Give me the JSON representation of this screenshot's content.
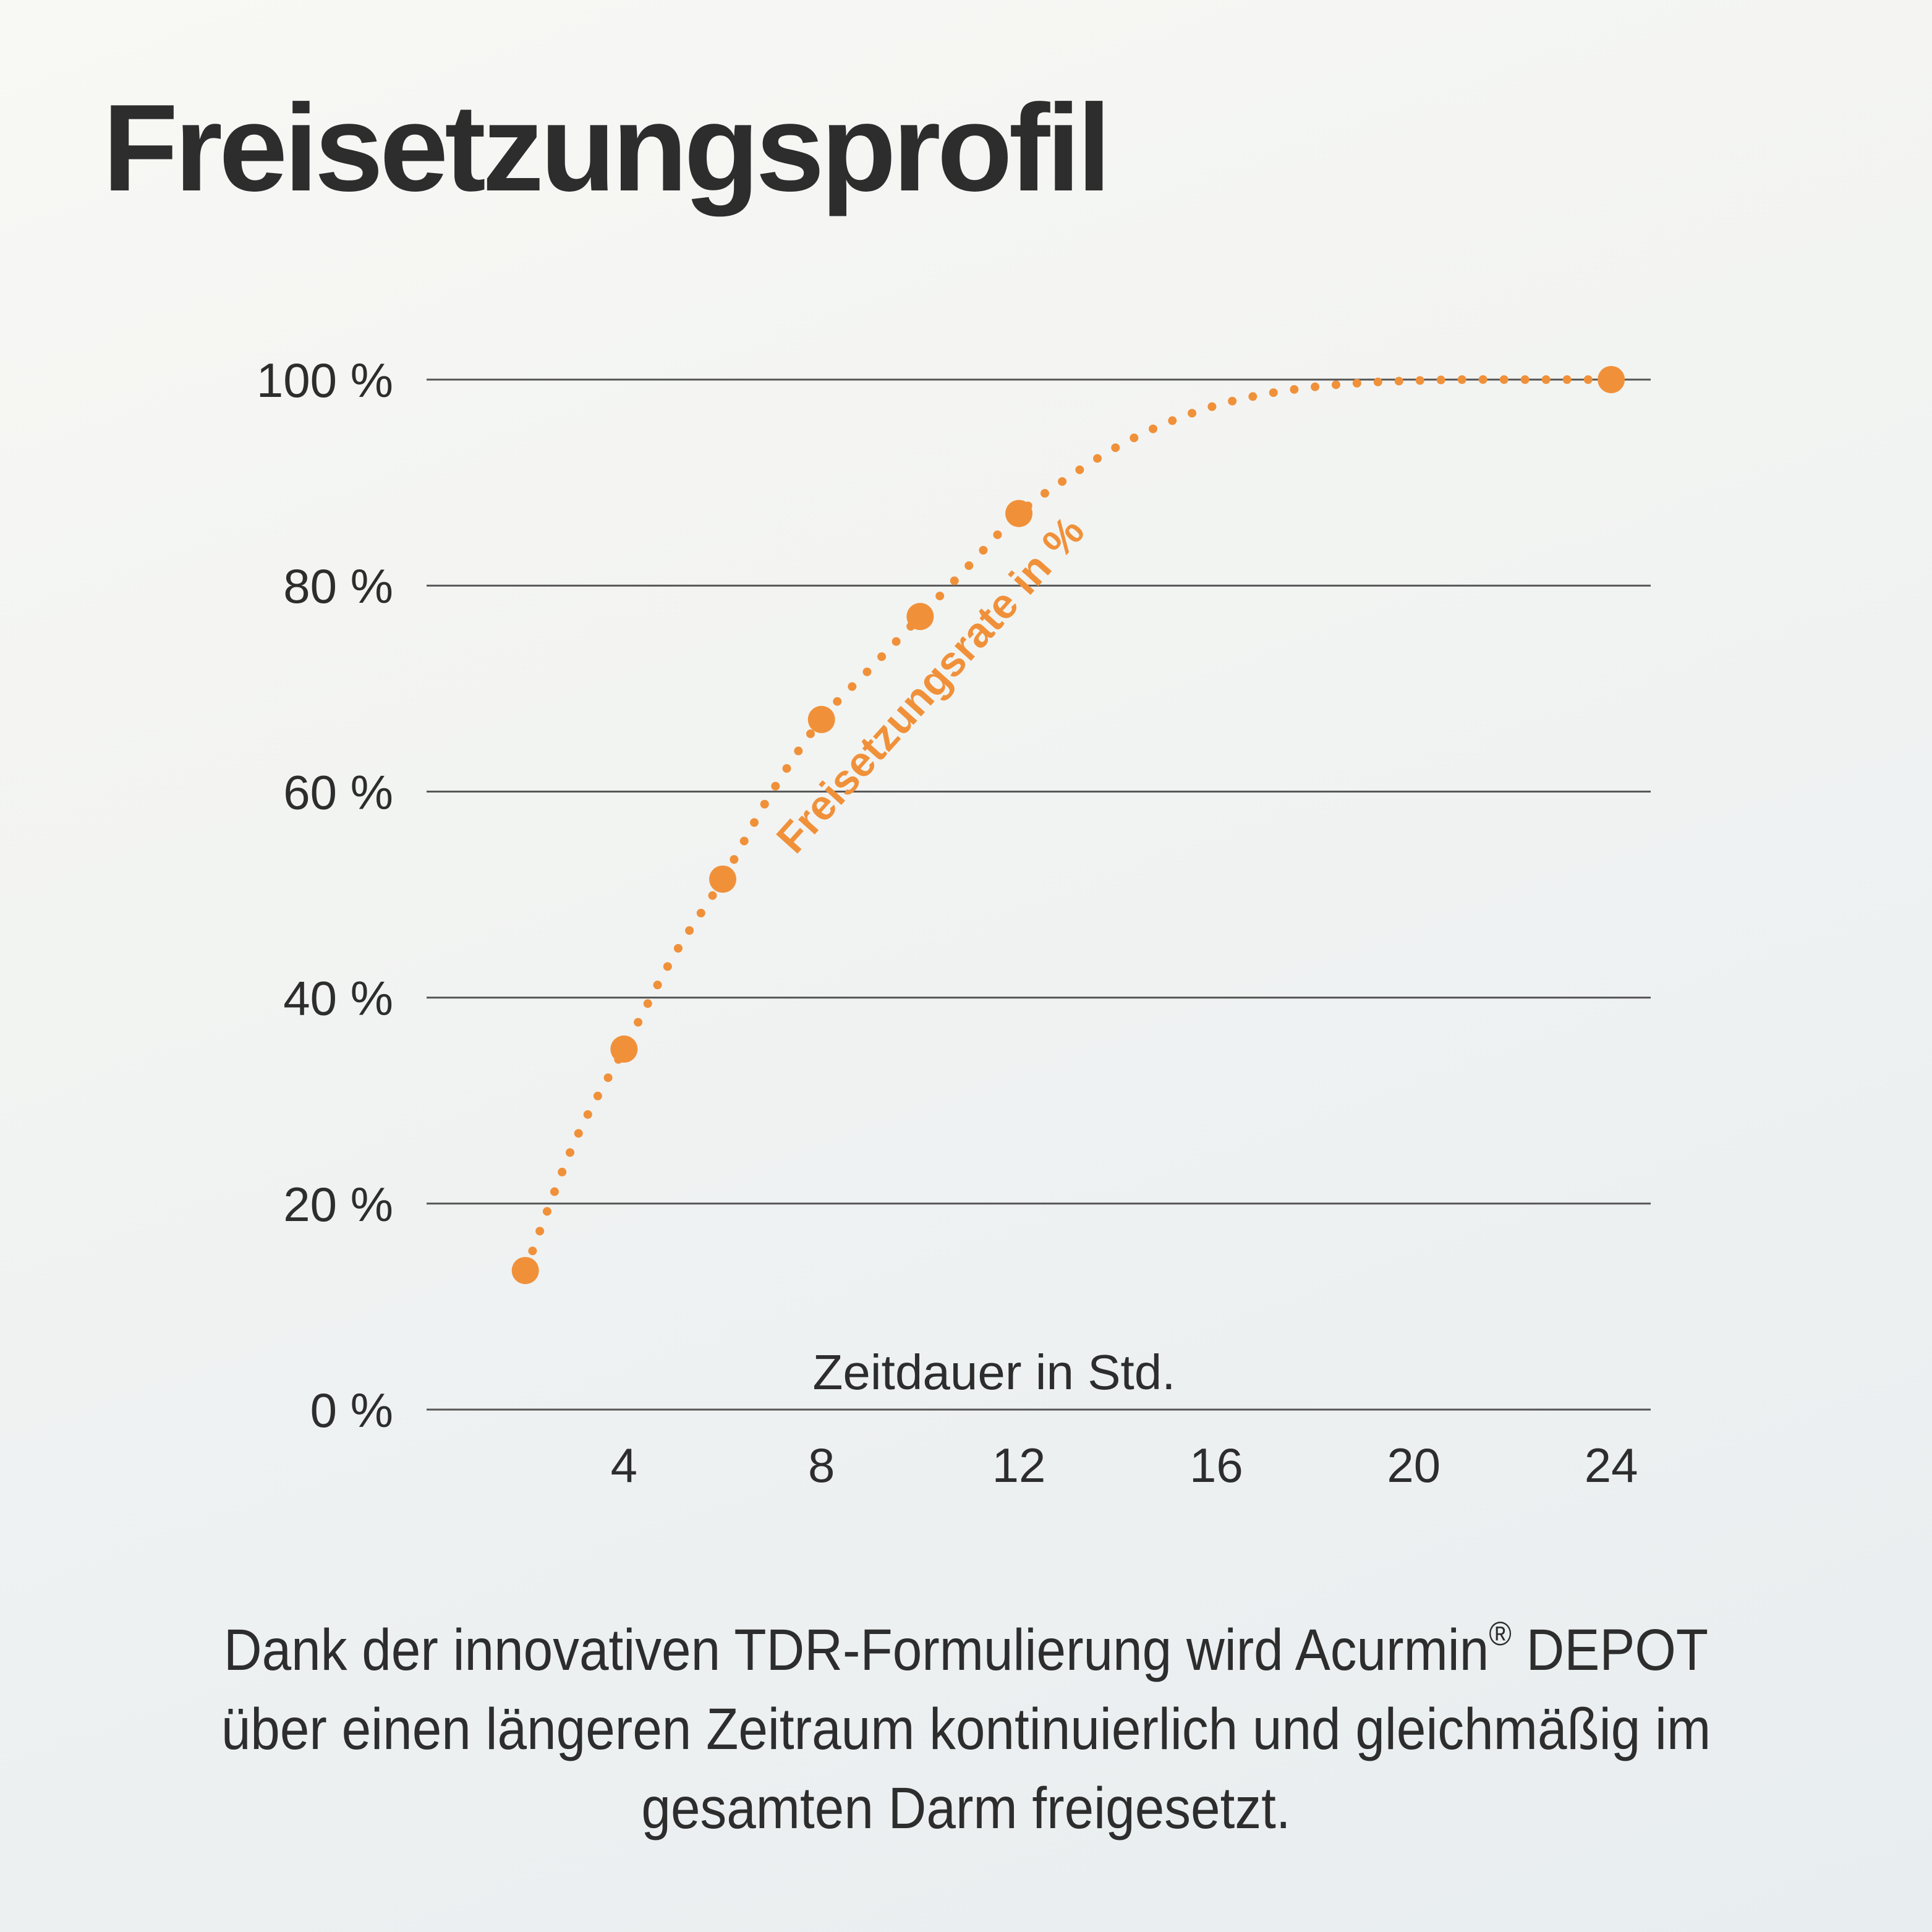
{
  "title": "Freisetzungsprofil",
  "caption": {
    "part1": "Dank der innovativen TDR-Formulierung wird Acurmin",
    "registered": "®",
    "part2": " DEPOT über einen längeren Zeitraum kontinuierlich und gleichmäßig im gesamten Darm freigesetzt."
  },
  "colors": {
    "accent": "#f0913a",
    "text": "#2d2d2d",
    "gridline": "#555555"
  },
  "chart_data": {
    "type": "line",
    "series": [
      {
        "name": "Freisetzungsrate in %",
        "x": [
          2,
          4,
          6,
          8,
          10,
          12,
          24
        ],
        "y": [
          13.5,
          35,
          51.5,
          67,
          77,
          87,
          100
        ]
      }
    ],
    "curve_x": [
      2,
      3,
      4,
      5,
      6,
      7,
      8,
      9,
      10,
      11,
      12,
      13,
      14,
      15,
      16,
      17,
      18,
      19,
      20,
      21,
      22,
      23,
      24
    ],
    "curve_y": [
      13.5,
      26,
      35,
      44,
      51.5,
      60,
      67,
      72,
      77,
      82,
      87,
      90.5,
      93.5,
      95.8,
      97.5,
      98.6,
      99.3,
      99.7,
      99.9,
      100,
      100,
      100,
      100
    ],
    "xlabel": "Zeitdauer in Std.",
    "ylabel": "",
    "xticks": [
      "4",
      "8",
      "12",
      "16",
      "20",
      "24"
    ],
    "xtick_values": [
      4,
      8,
      12,
      16,
      20,
      24
    ],
    "yticks": [
      "0 %",
      "20 %",
      "40 %",
      "60 %",
      "80 %",
      "100 %"
    ],
    "ytick_values": [
      0,
      20,
      40,
      60,
      80,
      100
    ],
    "xlim": [
      0,
      24.8
    ],
    "ylim": [
      0,
      100
    ],
    "grid": true,
    "series_label_placement": "along-curve"
  }
}
